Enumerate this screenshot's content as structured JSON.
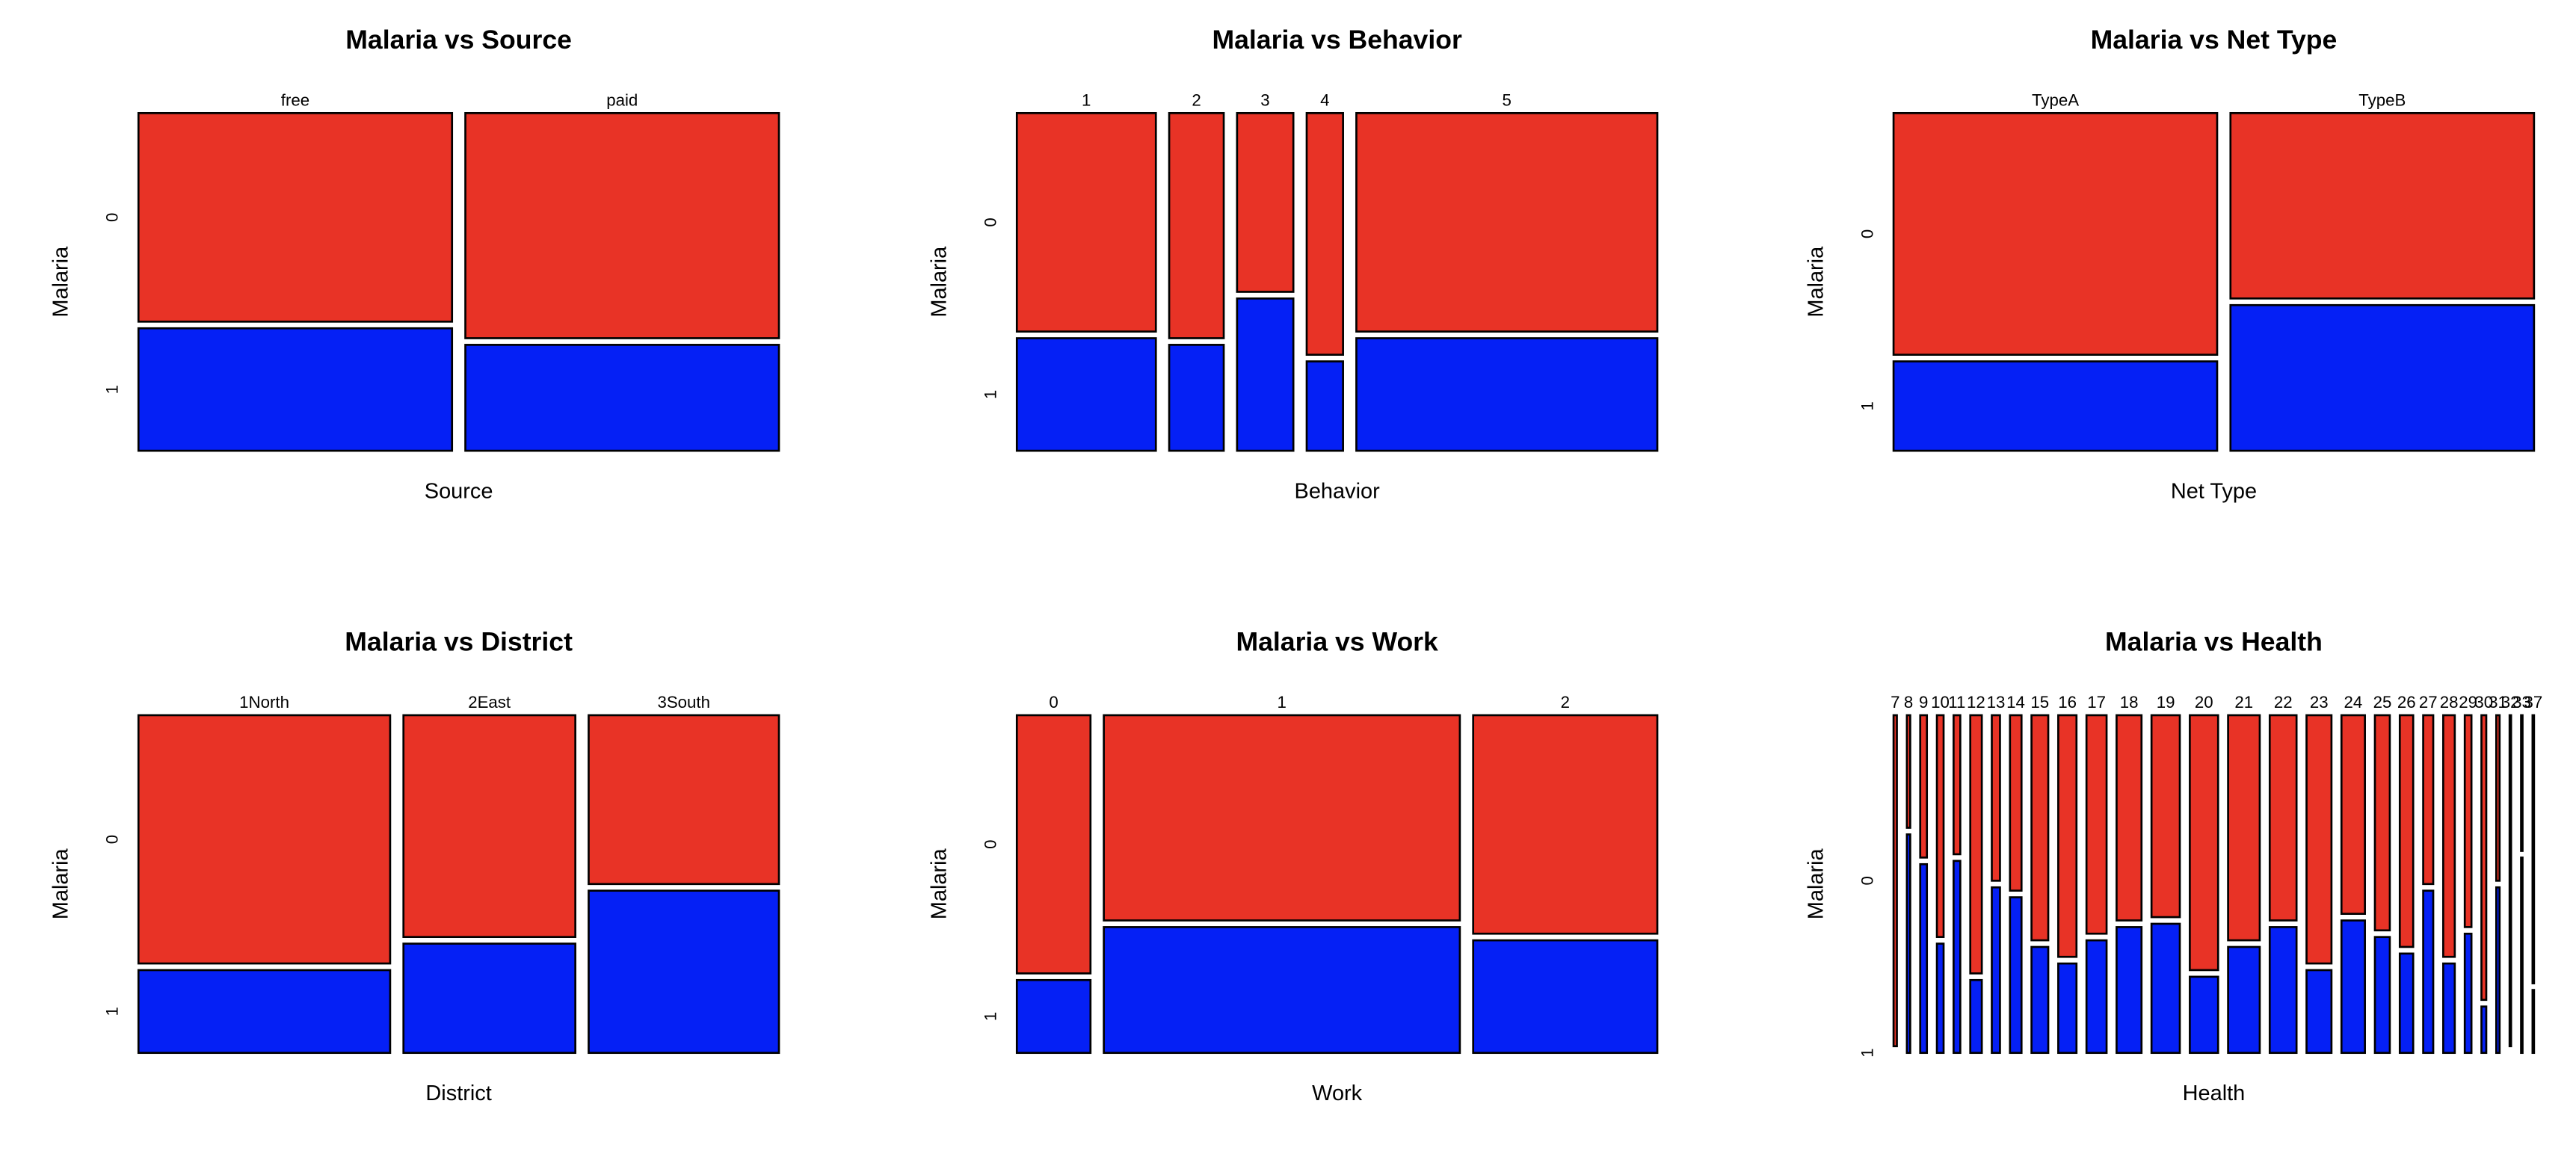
{
  "chart_data": [
    {
      "type": "mosaic",
      "title": "Malaria vs Source",
      "xlabel": "Source",
      "ylabel": "Malaria",
      "categories": [
        "free",
        "paid"
      ],
      "widths": [
        0.5,
        0.5
      ],
      "series": [
        {
          "name": "0",
          "color": "#e83326",
          "values": [
            0.63,
            0.68
          ]
        },
        {
          "name": "1",
          "color": "#0520f5",
          "values": [
            0.37,
            0.32
          ]
        }
      ]
    },
    {
      "type": "mosaic",
      "title": "Malaria vs Behavior",
      "xlabel": "Behavior",
      "ylabel": "Malaria",
      "categories": [
        "1",
        "2",
        "3",
        "4",
        "5"
      ],
      "widths": [
        0.237,
        0.093,
        0.096,
        0.062,
        0.513
      ],
      "series": [
        {
          "name": "0",
          "color": "#e83326",
          "values": [
            0.66,
            0.68,
            0.54,
            0.73,
            0.66
          ]
        },
        {
          "name": "1",
          "color": "#0520f5",
          "values": [
            0.34,
            0.32,
            0.46,
            0.27,
            0.34
          ]
        }
      ]
    },
    {
      "type": "mosaic",
      "title": "Malaria vs Net Type",
      "xlabel": "Net Type",
      "ylabel": "Malaria",
      "categories": [
        "TypeA",
        "TypeB"
      ],
      "widths": [
        0.516,
        0.484
      ],
      "series": [
        {
          "name": "0",
          "color": "#e83326",
          "values": [
            0.73,
            0.56
          ]
        },
        {
          "name": "1",
          "color": "#0520f5",
          "values": [
            0.27,
            0.44
          ]
        }
      ]
    },
    {
      "type": "mosaic",
      "title": "Malaria vs District",
      "xlabel": "District",
      "ylabel": "Malaria",
      "categories": [
        "1North",
        "2East",
        "3South"
      ],
      "widths": [
        0.41,
        0.28,
        0.31
      ],
      "series": [
        {
          "name": "0",
          "color": "#e83326",
          "values": [
            0.75,
            0.67,
            0.51
          ]
        },
        {
          "name": "1",
          "color": "#0520f5",
          "values": [
            0.25,
            0.33,
            0.49
          ]
        }
      ]
    },
    {
      "type": "mosaic",
      "title": "Malaria vs Work",
      "xlabel": "Work",
      "ylabel": "Malaria",
      "categories": [
        "0",
        "1",
        "2"
      ],
      "widths": [
        0.12,
        0.58,
        0.3
      ],
      "series": [
        {
          "name": "0",
          "color": "#e83326",
          "values": [
            0.78,
            0.62,
            0.66
          ]
        },
        {
          "name": "1",
          "color": "#0520f5",
          "values": [
            0.22,
            0.38,
            0.34
          ]
        }
      ]
    },
    {
      "type": "mosaic",
      "title": "Malaria vs Health",
      "xlabel": "Health",
      "ylabel": "Malaria",
      "categories": [
        "7",
        "8",
        "9",
        "10",
        "11",
        "12",
        "13",
        "14",
        "15",
        "16",
        "17",
        "18",
        "19",
        "20",
        "21",
        "22",
        "23",
        "24",
        "25",
        "26",
        "27",
        "28",
        "29",
        "30",
        "31",
        "32",
        "33",
        "37"
      ],
      "widths": [
        0.009,
        0.009,
        0.018,
        0.018,
        0.018,
        0.031,
        0.022,
        0.031,
        0.045,
        0.049,
        0.054,
        0.067,
        0.076,
        0.076,
        0.085,
        0.072,
        0.067,
        0.063,
        0.04,
        0.036,
        0.027,
        0.031,
        0.018,
        0.013,
        0.009,
        0.004,
        0.004,
        0.004
      ],
      "series": [
        {
          "name": "0",
          "color": "#e83326",
          "values": [
            1.0,
            0.34,
            0.43,
            0.67,
            0.42,
            0.78,
            0.5,
            0.53,
            0.68,
            0.73,
            0.66,
            0.62,
            0.61,
            0.77,
            0.68,
            0.62,
            0.75,
            0.6,
            0.65,
            0.7,
            0.51,
            0.73,
            0.64,
            0.86,
            0.5,
            1.0,
            0.41,
            0.81
          ]
        },
        {
          "name": "1",
          "color": "#0520f5",
          "values": [
            0.0,
            0.66,
            0.57,
            0.33,
            0.58,
            0.22,
            0.5,
            0.47,
            0.32,
            0.27,
            0.34,
            0.38,
            0.39,
            0.23,
            0.32,
            0.38,
            0.25,
            0.4,
            0.35,
            0.3,
            0.49,
            0.27,
            0.36,
            0.14,
            0.5,
            0.0,
            0.59,
            0.19
          ]
        }
      ]
    }
  ]
}
